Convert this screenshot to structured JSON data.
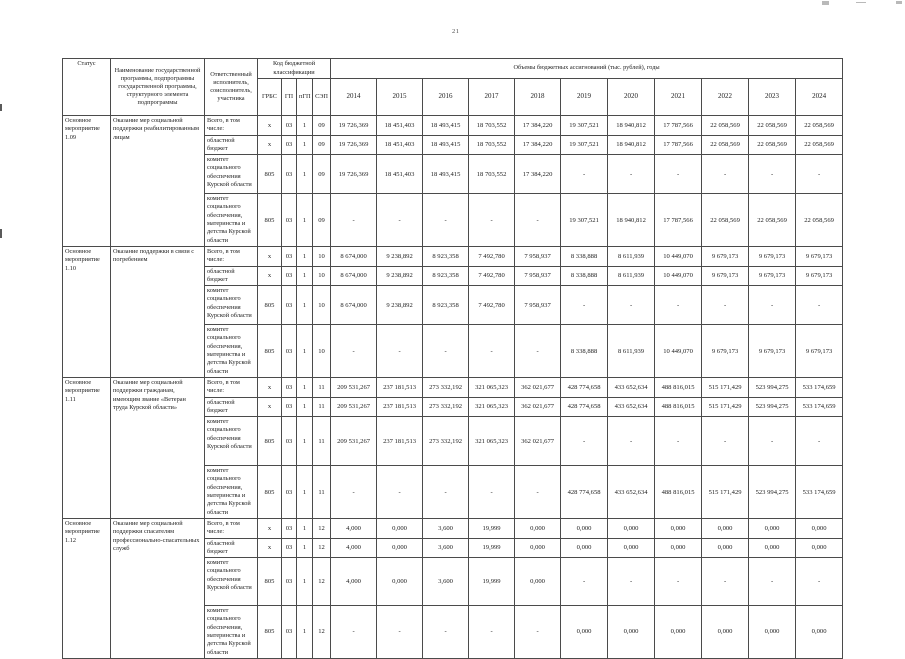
{
  "page": {
    "number": "21"
  },
  "table": {
    "header": {
      "status": "Статус",
      "program_name": "Наименование государственной программы, подпрограммы государственной программы, структурного элемента подпрограммы",
      "executor": "Ответственный исполнитель, соисполнитель, участника",
      "budget_code_group": "Код бюджетной классификации",
      "budget_code_columns": [
        "ГРБС",
        "ГП",
        "пГП",
        "СЭП"
      ],
      "volumes_group": "Объемы бюджетных ассигнований (тыс. рублей), годы",
      "years": [
        "2014",
        "2015",
        "2016",
        "2017",
        "2018",
        "2019",
        "2020",
        "2021",
        "2022",
        "2023",
        "2024"
      ]
    },
    "blocks": [
      {
        "status": "Основное мероприятие 1.09",
        "program": "Оказание мер социальной поддержки реабилитированным лицам",
        "rows": [
          {
            "executor": "Всего, в том числе:",
            "grbs": "х",
            "gp": "03",
            "pgp": "1",
            "sep": "09",
            "values": [
              "19 726,369",
              "18 451,403",
              "18 493,415",
              "18 703,552",
              "17 384,220",
              "19 307,521",
              "18 940,812",
              "17 787,566",
              "22 058,569",
              "22 058,569",
              "22 058,569"
            ]
          },
          {
            "executor": "областной бюджет",
            "grbs": "х",
            "gp": "03",
            "pgp": "1",
            "sep": "09",
            "values": [
              "19 726,369",
              "18 451,403",
              "18 493,415",
              "18 703,552",
              "17 384,220",
              "19 307,521",
              "18 940,812",
              "17 787,566",
              "22 058,569",
              "22 058,569",
              "22 058,569"
            ]
          },
          {
            "executor": "комитет социального обеспечения Курской области",
            "grbs": "805",
            "gp": "03",
            "pgp": "1",
            "sep": "09",
            "values": [
              "19 726,369",
              "18 451,403",
              "18 493,415",
              "18 703,552",
              "17 384,220",
              "-",
              "-",
              "-",
              "-",
              "-",
              "-"
            ]
          },
          {
            "executor": "комитет социального обеспечения, материнства и детства Курской области",
            "grbs": "805",
            "gp": "03",
            "pgp": "1",
            "sep": "09",
            "values": [
              "-",
              "-",
              "-",
              "-",
              "-",
              "19 307,521",
              "18 940,812",
              "17 787,566",
              "22 058,569",
              "22 058,569",
              "22 058,569"
            ]
          }
        ]
      },
      {
        "status": "Основное мероприятие 1.10",
        "program": "Оказание поддержки в связи с погребением",
        "rows": [
          {
            "executor": "Всего, в том числе:",
            "grbs": "х",
            "gp": "03",
            "pgp": "1",
            "sep": "10",
            "values": [
              "8 674,000",
              "9 238,892",
              "8 923,358",
              "7 492,780",
              "7 958,937",
              "8 338,888",
              "8 611,939",
              "10 449,070",
              "9 679,173",
              "9 679,173",
              "9 679,173"
            ]
          },
          {
            "executor": "областной бюджет",
            "grbs": "х",
            "gp": "03",
            "pgp": "1",
            "sep": "10",
            "values": [
              "8 674,000",
              "9 238,892",
              "8 923,358",
              "7 492,780",
              "7 958,937",
              "8 338,888",
              "8 611,939",
              "10 449,070",
              "9 679,173",
              "9 679,173",
              "9 679,173"
            ]
          },
          {
            "executor": "комитет социального обеспечения Курской области",
            "grbs": "805",
            "gp": "03",
            "pgp": "1",
            "sep": "10",
            "values": [
              "8 674,000",
              "9 238,892",
              "8 923,358",
              "7 492,780",
              "7 958,937",
              "-",
              "-",
              "-",
              "-",
              "-",
              "-"
            ]
          },
          {
            "executor": "комитет социального обеспечения, материнства и детства Курской области",
            "grbs": "805",
            "gp": "03",
            "pgp": "1",
            "sep": "10",
            "values": [
              "-",
              "-",
              "-",
              "-",
              "-",
              "8 338,888",
              "8 611,939",
              "10 449,070",
              "9 679,173",
              "9 679,173",
              "9 679,173"
            ]
          }
        ]
      },
      {
        "status": "Основное мероприятие 1.11",
        "program": "Оказание мер социальной поддержки гражданам, имеющим звание «Ветеран труда Курской области»",
        "rows": [
          {
            "executor": "Всего, в том числе:",
            "grbs": "х",
            "gp": "03",
            "pgp": "1",
            "sep": "11",
            "values": [
              "209 531,267",
              "237 181,513",
              "273 332,192",
              "321 065,323",
              "362 021,677",
              "428 774,658",
              "433 652,634",
              "488 816,015",
              "515 171,429",
              "523 994,275",
              "533 174,659"
            ]
          },
          {
            "executor": "областной бюджет",
            "grbs": "х",
            "gp": "03",
            "pgp": "1",
            "sep": "11",
            "values": [
              "209 531,267",
              "237 181,513",
              "273 332,192",
              "321 065,323",
              "362 021,677",
              "428 774,658",
              "433 652,634",
              "488 816,015",
              "515 171,429",
              "523 994,275",
              "533 174,659"
            ]
          },
          {
            "executor": "комитет социального обеспечения Курской области",
            "grbs": "805",
            "gp": "03",
            "pgp": "1",
            "sep": "11",
            "values": [
              "209 531,267",
              "237 181,513",
              "273 332,192",
              "321 065,323",
              "362 021,677",
              "-",
              "-",
              "-",
              "-",
              "-",
              "-"
            ]
          },
          {
            "executor": "комитет социального обеспечения, материнства и детства Курской области",
            "grbs": "805",
            "gp": "03",
            "pgp": "1",
            "sep": "11",
            "values": [
              "-",
              "-",
              "-",
              "-",
              "-",
              "428 774,658",
              "433 652,634",
              "488 816,015",
              "515 171,429",
              "523 994,275",
              "533 174,659"
            ]
          }
        ]
      },
      {
        "status": "Основное мероприятие 1.12",
        "program": "Оказание мер социальной поддержки спасателям профессионально-спасательных служб",
        "rows": [
          {
            "executor": "Всего, в том числе:",
            "grbs": "х",
            "gp": "03",
            "pgp": "1",
            "sep": "12",
            "values": [
              "4,000",
              "0,000",
              "3,600",
              "19,999",
              "0,000",
              "0,000",
              "0,000",
              "0,000",
              "0,000",
              "0,000",
              "0,000"
            ]
          },
          {
            "executor": "областной бюджет",
            "grbs": "х",
            "gp": "03",
            "pgp": "1",
            "sep": "12",
            "values": [
              "4,000",
              "0,000",
              "3,600",
              "19,999",
              "0,000",
              "0,000",
              "0,000",
              "0,000",
              "0,000",
              "0,000",
              "0,000"
            ]
          },
          {
            "executor": "комитет социального обеспечения Курской области",
            "grbs": "805",
            "gp": "03",
            "pgp": "1",
            "sep": "12",
            "values": [
              "4,000",
              "0,000",
              "3,600",
              "19,999",
              "0,000",
              "-",
              "-",
              "-",
              "-",
              "-",
              "-"
            ]
          },
          {
            "executor": "комитет социального обеспечения, материнства и детства Курской области",
            "grbs": "805",
            "gp": "03",
            "pgp": "1",
            "sep": "12",
            "values": [
              "-",
              "-",
              "-",
              "-",
              "-",
              "0,000",
              "0,000",
              "0,000",
              "0,000",
              "0,000",
              "0,000"
            ]
          }
        ]
      }
    ]
  },
  "colors": {
    "border": "#4b4b4b",
    "text": "#1c1c1c",
    "background": "#ffffff"
  }
}
